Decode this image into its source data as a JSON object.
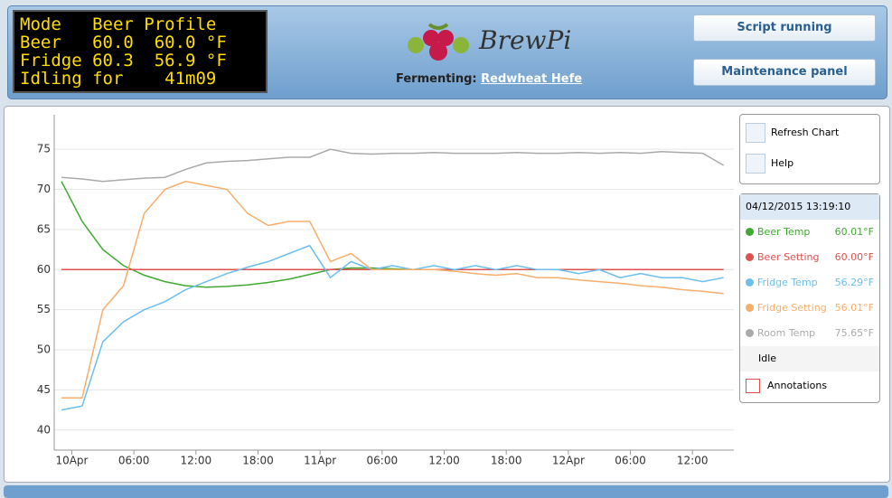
{
  "header": {
    "lcd": [
      "Mode   Beer Profile",
      "Beer   60.0  60.0 °F",
      "Fridge 60.3  56.9 °F",
      "Idling for    41m09"
    ],
    "logo": "BrewPi",
    "status_label": "Fermenting:",
    "profile": "Redwheat Hefe",
    "buttons": [
      "Script running",
      "Maintenance panel"
    ]
  },
  "chart_controls": [
    "Refresh Chart",
    "Help"
  ],
  "legend": {
    "timestamp": "04/12/2015 13:19:10",
    "values": [
      "60.01°F",
      "60.00°F",
      "56.29°F",
      "56.01°F",
      "75.65°F"
    ],
    "state": "Idle",
    "annotations": "Annotations"
  },
  "chart_data": {
    "type": "line",
    "x": [
      -1,
      1,
      3,
      5,
      7,
      9,
      11,
      13,
      15,
      17,
      19,
      21,
      23,
      25,
      27,
      29,
      31,
      33,
      35,
      37,
      39,
      41,
      43,
      45,
      47,
      49,
      51,
      53,
      55,
      57,
      59,
      61,
      63
    ],
    "xlim": [
      -1.7,
      64
    ],
    "xticks": [
      {
        "value": 0,
        "label": "10Apr"
      },
      {
        "value": 6,
        "label": "06:00"
      },
      {
        "value": 12,
        "label": "12:00"
      },
      {
        "value": 18,
        "label": "18:00"
      },
      {
        "value": 24,
        "label": "11Apr"
      },
      {
        "value": 30,
        "label": "06:00"
      },
      {
        "value": 36,
        "label": "12:00"
      },
      {
        "value": 42,
        "label": "18:00"
      },
      {
        "value": 48,
        "label": "12Apr"
      },
      {
        "value": 54,
        "label": "06:00"
      },
      {
        "value": 60,
        "label": "12:00"
      }
    ],
    "ylim": [
      37.5,
      79.3
    ],
    "yticks": [
      40,
      45,
      50,
      55,
      60,
      65,
      70,
      75
    ],
    "grid": true,
    "series": [
      {
        "name": "Beer Temp",
        "color": "#41a832",
        "values": [
          71,
          66,
          62.5,
          60.5,
          59.3,
          58.5,
          58,
          57.8,
          57.9,
          58.1,
          58.4,
          58.8,
          59.4,
          60,
          60.2,
          60.2,
          60.1,
          60,
          60,
          60,
          60,
          60,
          60,
          60,
          60,
          60,
          60,
          60,
          60,
          60,
          60,
          60,
          60
        ]
      },
      {
        "name": "Beer Setting",
        "color": "#e05050",
        "values": [
          60,
          60,
          60,
          60,
          60,
          60,
          60,
          60,
          60,
          60,
          60,
          60,
          60,
          60,
          60,
          60,
          60,
          60,
          60,
          60,
          60,
          60,
          60,
          60,
          60,
          60,
          60,
          60,
          60,
          60,
          60,
          60,
          60
        ]
      },
      {
        "name": "Fridge Temp",
        "color": "#6bbef0",
        "values": [
          42.5,
          43,
          51,
          53.5,
          55,
          56,
          57.5,
          58.5,
          59.5,
          60.3,
          61,
          62,
          63,
          59,
          61,
          60,
          60.5,
          60,
          60.5,
          60,
          60.5,
          60,
          60.5,
          60,
          60,
          59.5,
          60,
          59,
          59.5,
          59,
          59,
          58.5,
          59
        ]
      },
      {
        "name": "Fridge Setting",
        "color": "#f6ae6a",
        "values": [
          44,
          44,
          55,
          58,
          67,
          70,
          71,
          70.5,
          70,
          67,
          65.5,
          66,
          66,
          61,
          62,
          60,
          60,
          60,
          60,
          59.8,
          59.5,
          59.3,
          59.5,
          59,
          59,
          58.7,
          58.5,
          58.3,
          58,
          57.8,
          57.5,
          57.3,
          57
        ]
      },
      {
        "name": "Room Temp",
        "color": "#aaaaaa",
        "values": [
          71.5,
          71.3,
          71,
          71.2,
          71.4,
          71.5,
          72.5,
          73.3,
          73.5,
          73.6,
          73.8,
          74,
          74,
          75,
          74.5,
          74.4,
          74.5,
          74.5,
          74.6,
          74.5,
          74.5,
          74.5,
          74.6,
          74.5,
          74.5,
          74.6,
          74.5,
          74.6,
          74.5,
          74.7,
          74.6,
          74.5,
          73
        ]
      }
    ]
  }
}
